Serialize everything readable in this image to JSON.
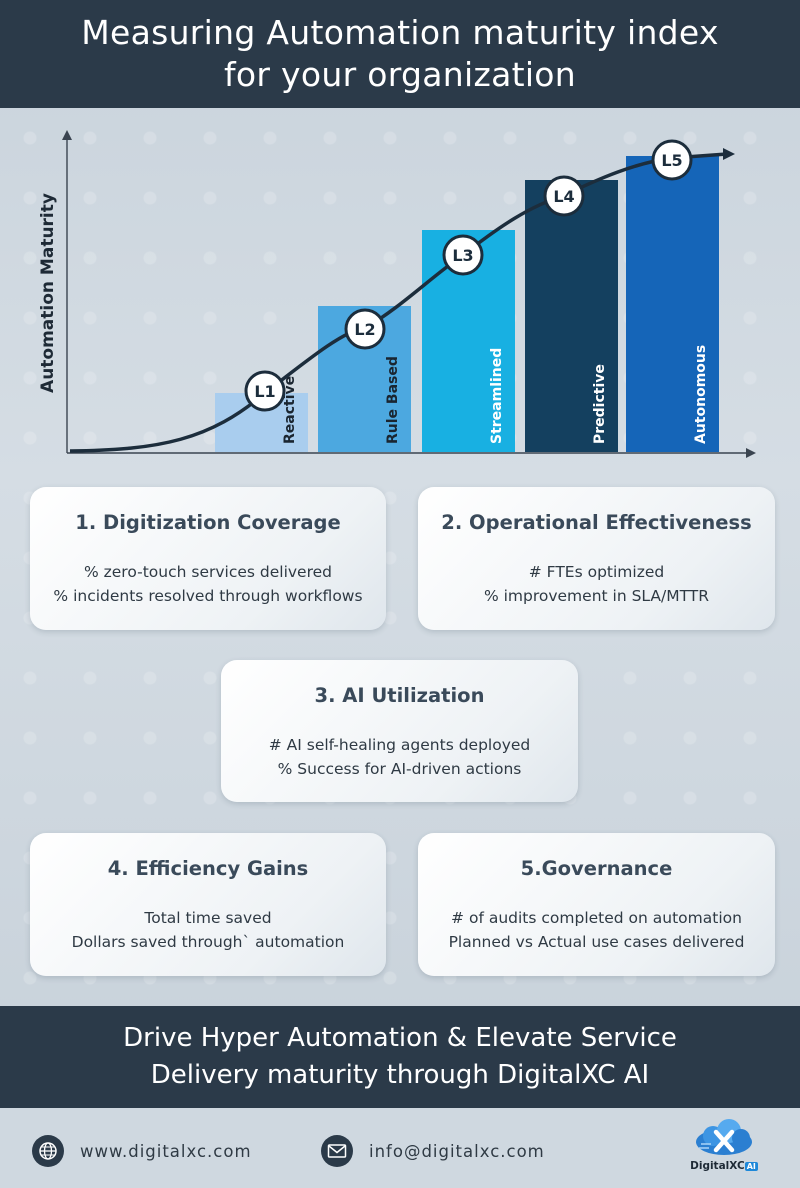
{
  "header": {
    "title_line1": "Measuring Automation maturity index",
    "title_line2": "for your organization"
  },
  "chart_data": {
    "type": "bar",
    "ylabel": "Automation Maturity",
    "categories": [
      "Reactive",
      "Rule Based",
      "Streamlined",
      "Predictive",
      "Autonomous"
    ],
    "levels": [
      "L1",
      "L2",
      "L3",
      "L4",
      "L5"
    ],
    "values": [
      1,
      2,
      3,
      4,
      5
    ],
    "colors": [
      "#a9cdee",
      "#4ca8e0",
      "#18b0e2",
      "#14405f",
      "#1565b8"
    ]
  },
  "cards": [
    {
      "title": "1. Digitization Coverage",
      "lines": [
        "% zero-touch services delivered",
        "% incidents resolved through workflows"
      ]
    },
    {
      "title": "2. Operational Effectiveness",
      "lines": [
        "# FTEs optimized",
        "% improvement in SLA/MTTR"
      ]
    },
    {
      "title": "3. AI Utilization",
      "lines": [
        "# AI self-healing agents deployed",
        "% Success for AI-driven actions"
      ]
    },
    {
      "title": "4. Efficiency Gains",
      "lines": [
        "Total time saved",
        "Dollars saved through` automation"
      ]
    },
    {
      "title": "5.Governance",
      "lines": [
        "# of audits completed on automation",
        "Planned vs Actual use cases delivered"
      ]
    }
  ],
  "footer": {
    "line1": "Drive Hyper Automation & Elevate Service",
    "line2": "Delivery maturity through DigitalXC AI"
  },
  "contact": {
    "website": "www.digitalxc.com",
    "email": "info@digitalxc.com",
    "website_icon": "globe-icon",
    "email_icon": "mail-icon"
  },
  "logo": {
    "name": "DigitalXC",
    "badge": "AI"
  }
}
